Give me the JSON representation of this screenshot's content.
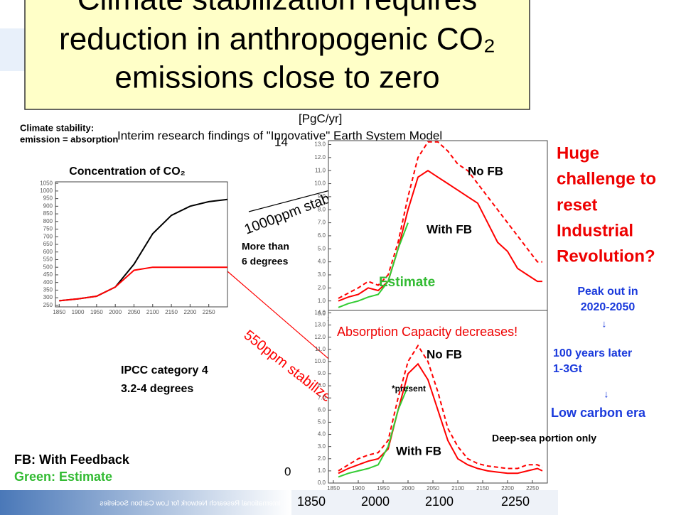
{
  "title_lines": [
    "Climate stabilization requires",
    "reduction in anthropogenic CO₂",
    "emissions close to zero"
  ],
  "left_notes": [
    "Climate stability:",
    "emission = absorption"
  ],
  "subtitle": "Interim research findings of \"Innovative\" Earth System Model",
  "unit_label": "[PgC/yr]",
  "overlay_top": "14",
  "overlay_zero": "0",
  "overlay_years": [
    "1850",
    "2000",
    "2100",
    "2250"
  ],
  "ipcc": [
    "IPCC category 4",
    "3.2-4 degrees"
  ],
  "more_than": [
    "More than",
    "6 degrees"
  ],
  "stabilize_1000": "1000ppm stabilize",
  "stabilize_550": "550ppm stabilize",
  "legend_notes": [
    "FB: With Feedback",
    "Green: Estimate"
  ],
  "challenge": [
    "Huge",
    "challenge to",
    "reset",
    "Industrial",
    "Revolution?"
  ],
  "peak": [
    "Peak out in",
    "2020-2050",
    "↓",
    "100 years later",
    "1-3Gt",
    "↓",
    "Low carbon era"
  ],
  "footer_org": "International Research Network for Low Carbon Societies",
  "chart_data": [
    {
      "type": "line",
      "title": "Concentration of CO₂",
      "x": [
        1850,
        1900,
        1950,
        2000,
        2050,
        2100,
        2150,
        2200,
        2250,
        2300
      ],
      "xlim": [
        1840,
        2300
      ],
      "xticks": [
        1850,
        1900,
        1950,
        2000,
        2050,
        2100,
        2150,
        2200,
        2250
      ],
      "ylim": [
        240,
        1060
      ],
      "yticks": [
        250,
        300,
        350,
        400,
        450,
        500,
        550,
        600,
        650,
        700,
        750,
        800,
        850,
        900,
        950,
        1000,
        1050
      ],
      "series": [
        {
          "name": "1000ppm",
          "color": "#000000",
          "values": [
            280,
            292,
            310,
            370,
            520,
            720,
            840,
            900,
            930,
            945
          ]
        },
        {
          "name": "550ppm",
          "color": "#ff0000",
          "values": [
            280,
            292,
            310,
            370,
            480,
            500,
            500,
            500,
            500,
            500
          ]
        }
      ],
      "annotations": []
    },
    {
      "type": "line",
      "x": [
        1860,
        1880,
        1900,
        1920,
        1940,
        1960,
        1980,
        2000,
        2020,
        2040,
        2060,
        2080,
        2100,
        2120,
        2140,
        2160,
        2180,
        2200,
        2220,
        2240,
        2260,
        2270
      ],
      "xlim": [
        1840,
        2280
      ],
      "xticks": [
        1850,
        1900,
        1950,
        2000,
        2050,
        2100,
        2150,
        2200,
        2250
      ],
      "ylim": [
        0,
        13.3
      ],
      "yticks": [
        {
          "value": 0,
          "label": "0.0"
        },
        {
          "value": 1,
          "label": "1.0"
        },
        {
          "value": 2,
          "label": "2.0"
        },
        {
          "value": 3,
          "label": "3.0"
        },
        {
          "value": 4,
          "label": "4.0"
        },
        {
          "value": 5,
          "label": "5.0"
        },
        {
          "value": 6,
          "label": "6.0"
        },
        {
          "value": 7,
          "label": "7.0"
        },
        {
          "value": 8,
          "label": "8.0"
        },
        {
          "value": 9,
          "label": "9.0"
        },
        {
          "value": 10,
          "label": "10.0"
        },
        {
          "value": 11,
          "label": "11.0"
        },
        {
          "value": 12,
          "label": "12.0"
        },
        {
          "value": 13,
          "label": "13.0"
        }
      ],
      "series": [
        {
          "name": "With FB",
          "color": "#ff0000",
          "dash": false,
          "values": [
            1.0,
            1.3,
            1.5,
            2.0,
            1.8,
            2.5,
            5.0,
            8.0,
            10.5,
            11.0,
            10.5,
            10.0,
            9.5,
            9.0,
            8.5,
            7.0,
            5.5,
            4.8,
            3.5,
            3.0,
            2.5,
            2.5
          ]
        },
        {
          "name": "No FB",
          "color": "#ff0000",
          "dash": true,
          "values": [
            1.2,
            1.6,
            2.0,
            2.5,
            2.2,
            3.0,
            5.5,
            9.0,
            12.0,
            13.2,
            13.2,
            12.5,
            11.5,
            11.0,
            10.0,
            9.0,
            8.0,
            7.0,
            6.0,
            5.0,
            4.0,
            4.0
          ]
        },
        {
          "name": "Estimate",
          "color": "#33cc33",
          "dash": false,
          "values": [
            0.5,
            0.8,
            1.0,
            1.3,
            1.5,
            2.5,
            5.0,
            7.0,
            null,
            null,
            null,
            null,
            null,
            null,
            null,
            null,
            null,
            null,
            null,
            null,
            null,
            null
          ]
        }
      ],
      "annotations": [
        "No FB",
        "With FB",
        "Estimate"
      ]
    },
    {
      "type": "line",
      "x": [
        1860,
        1880,
        1900,
        1920,
        1940,
        1960,
        1980,
        2000,
        2020,
        2040,
        2060,
        2080,
        2100,
        2120,
        2140,
        2160,
        2180,
        2200,
        2220,
        2240,
        2260,
        2270
      ],
      "xlim": [
        1840,
        2280
      ],
      "xticks": [
        1850,
        1900,
        1950,
        2000,
        2050,
        2100,
        2150,
        2200,
        2250
      ],
      "ylim": [
        0,
        14.2
      ],
      "yticks": [
        {
          "value": 0,
          "label": "0.0"
        },
        {
          "value": 1,
          "label": "1.0"
        },
        {
          "value": 2,
          "label": "2.0"
        },
        {
          "value": 3,
          "label": "3.0"
        },
        {
          "value": 4,
          "label": "4.0"
        },
        {
          "value": 5,
          "label": "5.0"
        },
        {
          "value": 6,
          "label": "6.0"
        },
        {
          "value": 7,
          "label": "7.0"
        },
        {
          "value": 8,
          "label": "8.0"
        },
        {
          "value": 9,
          "label": "9.0"
        },
        {
          "value": 10,
          "label": "10.0"
        },
        {
          "value": 11,
          "label": "11.0"
        },
        {
          "value": 12,
          "label": "12.0"
        },
        {
          "value": 13,
          "label": "13.0"
        },
        {
          "value": 14,
          "label": "14.0"
        }
      ],
      "series": [
        {
          "name": "With FB",
          "color": "#ff0000",
          "dash": false,
          "values": [
            0.8,
            1.2,
            1.5,
            1.8,
            2.0,
            2.8,
            6.0,
            9.0,
            9.8,
            8.5,
            6.0,
            3.5,
            2.0,
            1.5,
            1.2,
            1.0,
            0.9,
            0.8,
            0.8,
            1.0,
            1.2,
            1.0
          ]
        },
        {
          "name": "No FB",
          "color": "#ff0000",
          "dash": true,
          "values": [
            1.0,
            1.5,
            2.0,
            2.3,
            2.5,
            3.5,
            7.0,
            10.0,
            11.3,
            10.0,
            7.5,
            4.5,
            3.0,
            2.0,
            1.6,
            1.4,
            1.3,
            1.2,
            1.2,
            1.5,
            1.5,
            1.3
          ]
        },
        {
          "name": "Estimate",
          "color": "#33cc33",
          "dash": false,
          "values": [
            0.5,
            0.8,
            1.0,
            1.2,
            1.5,
            3.0,
            6.0,
            8.0,
            null,
            null,
            null,
            null,
            null,
            null,
            null,
            null,
            null,
            null,
            null,
            null,
            null,
            null
          ]
        }
      ],
      "annotations": [
        "Absorption Capacity decreases!",
        "No FB",
        "*present",
        "Deep-sea portion only",
        "With FB"
      ]
    }
  ]
}
